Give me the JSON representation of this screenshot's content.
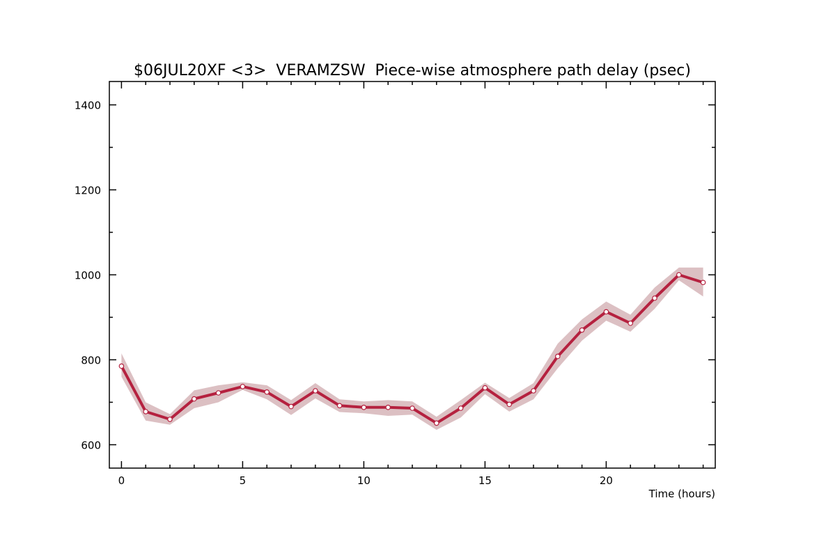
{
  "chart_data": {
    "type": "line",
    "title": "$06JUL20XF <3>  VERAMZSW  Piece-wise atmosphere path delay (psec)",
    "xlabel": "Time (hours)",
    "ylabel": "",
    "xlim": [
      -0.5,
      24.5
    ],
    "ylim": [
      545,
      1455
    ],
    "x_ticks": [
      0,
      5,
      10,
      15,
      20
    ],
    "x_minor_step": 1,
    "y_ticks": [
      600,
      800,
      1000,
      1200,
      1400
    ],
    "y_minor_step": 100,
    "grid": false,
    "colors": {
      "line": "#b5213f",
      "band": "#dcc0c3",
      "marker_fill": "#ffffff",
      "frame": "#000000"
    },
    "series": [
      {
        "x": [
          0,
          1,
          2,
          3,
          4,
          5,
          6,
          7,
          8,
          9,
          10,
          11,
          12,
          13,
          14,
          15,
          16,
          17,
          18,
          19,
          20,
          21,
          22,
          23,
          24
        ],
        "values": [
          785,
          678,
          660,
          708,
          722,
          737,
          724,
          690,
          727,
          692,
          688,
          688,
          686,
          651,
          686,
          734,
          695,
          727,
          808,
          870,
          913,
          886,
          945,
          1000,
          982
        ],
        "band_upper": [
          815,
          700,
          672,
          728,
          740,
          747,
          740,
          705,
          745,
          707,
          702,
          705,
          702,
          666,
          705,
          746,
          710,
          745,
          838,
          895,
          937,
          906,
          970,
          1017,
          1017
        ],
        "band_lower": [
          760,
          657,
          647,
          686,
          700,
          729,
          707,
          670,
          709,
          677,
          674,
          668,
          671,
          635,
          664,
          719,
          678,
          707,
          780,
          845,
          892,
          866,
          920,
          987,
          949
        ]
      }
    ]
  }
}
